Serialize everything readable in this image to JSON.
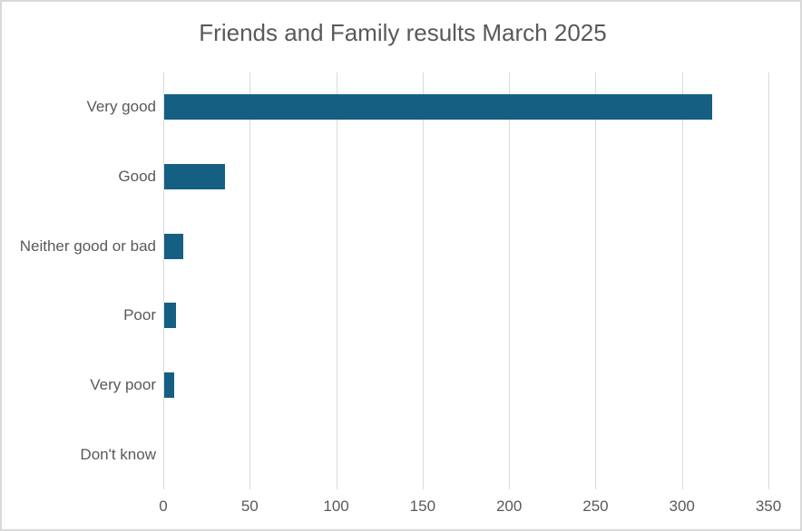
{
  "window": {
    "background": "#ffffff",
    "border_color": "#d9d9d9"
  },
  "chart_data": {
    "type": "bar",
    "orientation": "horizontal",
    "title": "Friends and Family results March 2025",
    "categories": [
      "Very good",
      "Good",
      "Neither good or bad",
      "Poor",
      "Very poor",
      "Don't know"
    ],
    "values": [
      317,
      35,
      11,
      7,
      6,
      0
    ],
    "xlabel": "",
    "ylabel": "",
    "xlim": [
      0,
      350
    ],
    "xticks": [
      0,
      50,
      100,
      150,
      200,
      250,
      300,
      350
    ],
    "grid": true,
    "legend": "none",
    "bar_color": "#156082",
    "gridline_color": "#d9d9d9",
    "axis_text_color": "#595959",
    "title_color": "#595959"
  }
}
